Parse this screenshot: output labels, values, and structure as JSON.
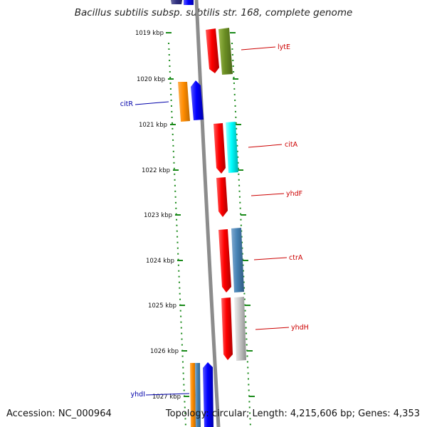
{
  "title": "Bacillus subtilis subsp. subtilis str. 168, complete genome",
  "footer": {
    "accession": "Accession: NC_000964",
    "stats": "Topology: circular; Length: 4,215,606 bp; Genes: 4,353"
  },
  "colors": {
    "red": "#ff0000",
    "olive": "#6b8e23",
    "orange": "#ff8c00",
    "blue": "#0000ff",
    "cyan": "#00ffff",
    "steelblue": "#4682b4",
    "gray": "#c8c8c8",
    "backbone": "#8c8c8c",
    "tick": "#1a8a1a",
    "label_red": "#cc0000",
    "label_blue": "#0000aa"
  },
  "ticks": [
    {
      "label": "1019 kbp"
    },
    {
      "label": "1020 kbp"
    },
    {
      "label": "1021 kbp"
    },
    {
      "label": "1022 kbp"
    },
    {
      "label": "1023 kbp"
    },
    {
      "label": "1024 kbp"
    },
    {
      "label": "1025 kbp"
    },
    {
      "label": "1026 kbp"
    },
    {
      "label": "1027 kbp"
    }
  ],
  "genes": [
    {
      "name": "lytE",
      "strand": "plus",
      "color": "red",
      "partner": "olive",
      "labeled": true
    },
    {
      "name": "citR",
      "strand": "minus",
      "color": "blue",
      "partner": "orange",
      "labeled": true
    },
    {
      "name": "citA",
      "strand": "plus",
      "color": "red",
      "partner": "cyan",
      "labeled": true
    },
    {
      "name": "yhdF",
      "strand": "plus",
      "color": "red",
      "partner": null,
      "labeled": true
    },
    {
      "name": "ctrA",
      "strand": "plus",
      "color": "red",
      "partner": "steelblue",
      "labeled": true
    },
    {
      "name": "yhdH",
      "strand": "plus",
      "color": "red",
      "partner": "gray",
      "labeled": true
    },
    {
      "name": "yhdI",
      "strand": "minus",
      "color": "blue",
      "partner": "orange",
      "labeled": true
    }
  ]
}
